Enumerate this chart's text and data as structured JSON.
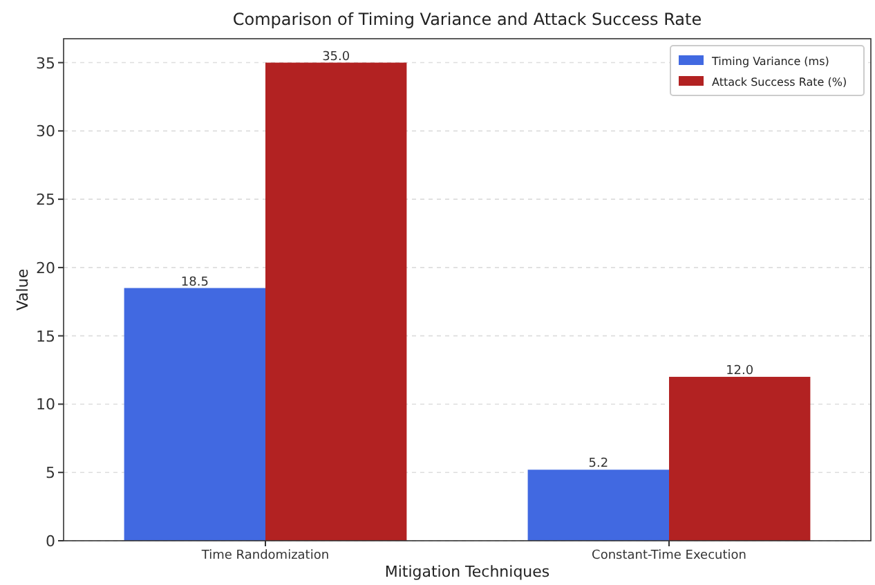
{
  "chart_data": {
    "type": "bar",
    "title": "Comparison of Timing Variance and Attack Success Rate",
    "xlabel": "Mitigation Techniques",
    "ylabel": "Value",
    "categories": [
      "Time Randomization",
      "Constant-Time Execution"
    ],
    "series": [
      {
        "name": "Timing Variance (ms)",
        "color": "#4169e1",
        "values": [
          18.5,
          5.2
        ]
      },
      {
        "name": "Attack Success Rate (%)",
        "color": "#b22222",
        "values": [
          35.0,
          12.0
        ]
      }
    ],
    "value_labels": [
      [
        "18.5",
        "5.2"
      ],
      [
        "35.0",
        "12.0"
      ]
    ],
    "ylim": [
      0,
      36.75
    ],
    "yticks": [
      0,
      5,
      10,
      15,
      20,
      25,
      30,
      35
    ],
    "grid": "y",
    "legend": "top right"
  }
}
